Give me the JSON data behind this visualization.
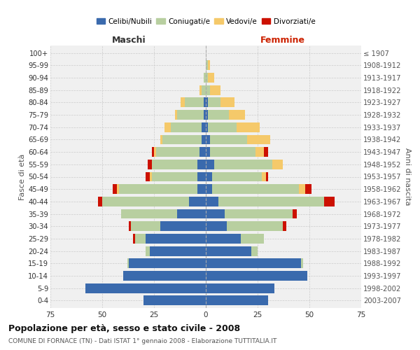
{
  "age_groups": [
    "0-4",
    "5-9",
    "10-14",
    "15-19",
    "20-24",
    "25-29",
    "30-34",
    "35-39",
    "40-44",
    "45-49",
    "50-54",
    "55-59",
    "60-64",
    "65-69",
    "70-74",
    "75-79",
    "80-84",
    "85-89",
    "90-94",
    "95-99",
    "100+"
  ],
  "birth_years": [
    "2003-2007",
    "1998-2002",
    "1993-1997",
    "1988-1992",
    "1983-1987",
    "1978-1982",
    "1973-1977",
    "1968-1972",
    "1963-1967",
    "1958-1962",
    "1953-1957",
    "1948-1952",
    "1943-1947",
    "1938-1942",
    "1933-1937",
    "1928-1932",
    "1923-1927",
    "1918-1922",
    "1913-1917",
    "1908-1912",
    "≤ 1907"
  ],
  "male": {
    "celibi": [
      30,
      58,
      40,
      37,
      27,
      29,
      22,
      14,
      8,
      4,
      4,
      4,
      3,
      2,
      2,
      1,
      1,
      0,
      0,
      0,
      0
    ],
    "coniugati": [
      0,
      0,
      0,
      1,
      2,
      5,
      14,
      27,
      42,
      38,
      22,
      22,
      21,
      19,
      15,
      13,
      9,
      2,
      1,
      0,
      0
    ],
    "vedovi": [
      0,
      0,
      0,
      0,
      0,
      0,
      0,
      0,
      0,
      1,
      1,
      0,
      1,
      1,
      3,
      1,
      2,
      1,
      0,
      0,
      0
    ],
    "divorziati": [
      0,
      0,
      0,
      0,
      0,
      1,
      1,
      0,
      2,
      2,
      2,
      2,
      1,
      0,
      0,
      0,
      0,
      0,
      0,
      0,
      0
    ]
  },
  "female": {
    "nubili": [
      30,
      33,
      49,
      46,
      22,
      17,
      10,
      9,
      6,
      3,
      3,
      4,
      2,
      2,
      1,
      1,
      1,
      0,
      0,
      0,
      0
    ],
    "coniugate": [
      0,
      0,
      0,
      1,
      3,
      11,
      27,
      33,
      51,
      42,
      24,
      28,
      22,
      18,
      14,
      10,
      6,
      2,
      1,
      1,
      0
    ],
    "vedove": [
      0,
      0,
      0,
      0,
      0,
      0,
      0,
      0,
      0,
      3,
      2,
      5,
      4,
      11,
      11,
      8,
      7,
      5,
      3,
      1,
      0
    ],
    "divorziate": [
      0,
      0,
      0,
      0,
      0,
      0,
      2,
      2,
      5,
      3,
      1,
      0,
      2,
      0,
      0,
      0,
      0,
      0,
      0,
      0,
      0
    ]
  },
  "colors": {
    "celibi": "#3a6aad",
    "coniugati": "#b8cfa0",
    "vedovi": "#f5c96a",
    "divorziati": "#cc1100"
  },
  "xlim": 75,
  "title": "Popolazione per età, sesso e stato civile - 2008",
  "subtitle": "COMUNE DI FORNACE (TN) - Dati ISTAT 1° gennaio 2008 - Elaborazione TUTTITALIA.IT",
  "ylabel_left": "Fasce di età",
  "ylabel_right": "Anni di nascita",
  "xlabel_left": "Maschi",
  "xlabel_right": "Femmine"
}
